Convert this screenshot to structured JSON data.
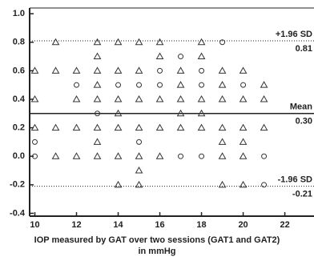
{
  "chart_data": {
    "type": "scatter",
    "xlabel": [
      "IOP measured by GAT over two sessions (GAT1 and GAT2)",
      "in mmHg"
    ],
    "xlim": [
      9.75,
      23.4
    ],
    "xticks": [
      10,
      12,
      14,
      16,
      18,
      20,
      22
    ],
    "ylim": [
      -0.42,
      1.04
    ],
    "yticks": [
      {
        "value": -0.4,
        "label": "-0.4"
      },
      {
        "value": -0.2,
        "label": "-0.2"
      },
      {
        "value": 0,
        "label": "0.0"
      },
      0.2,
      0.4,
      0.6,
      0.8,
      {
        "value": 1,
        "label": "1.0"
      }
    ],
    "series": [
      {
        "marker": "triangle",
        "color": "#333333",
        "x": [
          11,
          13,
          14,
          15,
          16,
          18,
          13,
          16,
          18,
          10,
          11,
          12,
          13,
          14,
          15,
          17,
          19,
          20,
          13,
          17,
          19,
          21,
          10,
          12,
          13,
          14,
          15,
          16,
          17,
          18,
          19,
          20,
          21,
          14,
          17,
          18,
          10,
          11,
          12,
          13,
          14,
          15,
          16,
          17,
          18,
          19,
          20,
          21,
          13,
          19,
          20,
          11,
          12,
          13,
          14,
          15,
          16,
          19,
          20,
          15,
          14,
          15,
          19,
          20
        ],
        "values": [
          0.8,
          0.8,
          0.8,
          0.8,
          0.8,
          0.8,
          0.7,
          0.7,
          0.7,
          0.6,
          0.6,
          0.6,
          0.6,
          0.6,
          0.6,
          0.6,
          0.6,
          0.6,
          0.5,
          0.5,
          0.5,
          0.5,
          0.4,
          0.4,
          0.4,
          0.4,
          0.4,
          0.4,
          0.4,
          0.4,
          0.4,
          0.4,
          0.4,
          0.3,
          0.3,
          0.3,
          0.2,
          0.2,
          0.2,
          0.2,
          0.2,
          0.2,
          0.2,
          0.2,
          0.2,
          0.2,
          0.2,
          0.2,
          0.1,
          0.1,
          0.1,
          0,
          0,
          0,
          0,
          0,
          0,
          0,
          0,
          -0.1,
          -0.2,
          -0.2,
          -0.2,
          -0.2
        ]
      },
      {
        "marker": "circle",
        "color": "#333333",
        "x": [
          19,
          17,
          16,
          18,
          12,
          14,
          15,
          16,
          18,
          20,
          13,
          10,
          15,
          10,
          17,
          18,
          21,
          21
        ],
        "values": [
          0.8,
          0.7,
          0.6,
          0.6,
          0.5,
          0.5,
          0.5,
          0.5,
          0.5,
          0.5,
          0.3,
          0.1,
          0.1,
          0,
          0,
          0,
          0,
          -0.2
        ]
      }
    ],
    "reference_lines": [
      {
        "name": "+1.96 SD",
        "value": 0.81,
        "value_label": "0.81",
        "style": "dotted"
      },
      {
        "name": "Mean",
        "value": 0.3,
        "value_label": "0.30",
        "style": "solid"
      },
      {
        "name": "-1.96 SD",
        "value": -0.21,
        "value_label": "-0.21",
        "style": "dotted"
      }
    ]
  }
}
